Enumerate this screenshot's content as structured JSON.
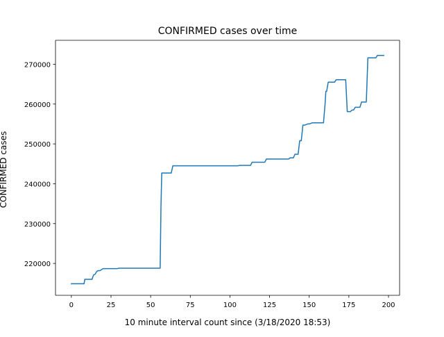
{
  "chart_data": {
    "type": "line",
    "title": "CONFIRMED cases over time",
    "xlabel": "10 minute interval count since (3/18/2020 18:53)",
    "ylabel": "CONFIRMED cases",
    "xlim": [
      -10,
      207
    ],
    "ylim": [
      212000,
      276000
    ],
    "xticks": [
      0,
      25,
      50,
      75,
      100,
      125,
      150,
      175,
      200
    ],
    "yticks": [
      220000,
      230000,
      240000,
      250000,
      260000,
      270000
    ],
    "grid": false,
    "series": [
      {
        "color": "#1f77b4",
        "x": [
          0,
          8,
          8.5,
          13,
          14,
          15,
          16,
          17,
          18,
          20,
          21,
          29,
          30,
          56,
          56.5,
          57,
          63,
          64,
          105,
          106,
          113,
          114,
          122,
          123,
          137,
          138,
          140,
          141,
          143,
          144,
          145,
          146,
          147,
          149,
          150,
          152,
          153,
          159,
          160,
          160.5,
          161,
          162,
          163,
          166,
          167,
          173,
          174,
          176,
          177,
          178,
          179,
          182,
          183,
          186,
          187,
          188,
          192,
          193,
          197
        ],
        "y": [
          214900,
          214900,
          216000,
          216000,
          217100,
          217300,
          218000,
          218200,
          218200,
          218700,
          218700,
          218700,
          218800,
          218800,
          234000,
          242700,
          242700,
          244500,
          244500,
          244600,
          244600,
          245400,
          245400,
          246200,
          246200,
          246500,
          246500,
          247400,
          247400,
          250800,
          250800,
          254700,
          254700,
          255000,
          255000,
          255300,
          255300,
          255300,
          260000,
          263200,
          263200,
          265500,
          265500,
          265500,
          266100,
          266100,
          258100,
          258100,
          258500,
          258500,
          259200,
          259200,
          260500,
          260500,
          271600,
          271600,
          271600,
          272200,
          272200
        ]
      }
    ]
  }
}
